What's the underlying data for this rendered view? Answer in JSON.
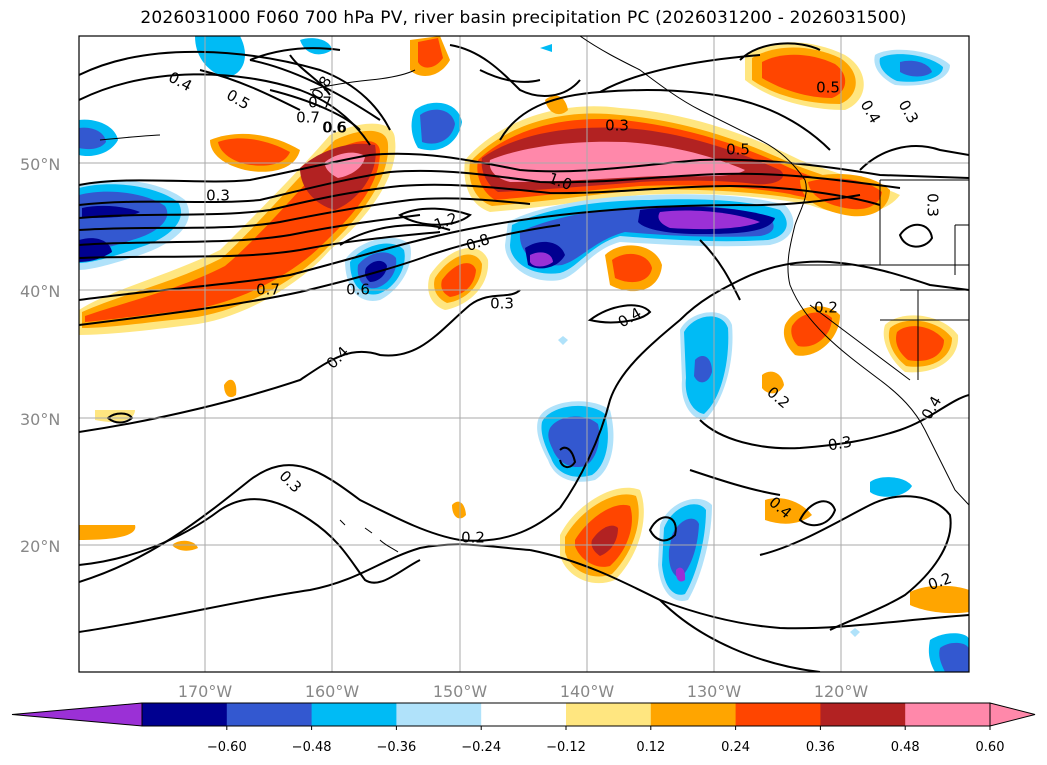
{
  "title": "2026031000 F060 700 hPa PV, river basin precipitation PC (2026031200 - 2026031500)",
  "map": {
    "lat_labels": [
      "50°N",
      "40°N",
      "30°N",
      "20°N"
    ],
    "lon_labels": [
      "170°W",
      "160°W",
      "150°W",
      "140°W",
      "130°W",
      "120°W"
    ],
    "contour_labels": [
      {
        "id": "c1",
        "text": "0.4"
      },
      {
        "id": "c2",
        "text": "0.5"
      },
      {
        "id": "c3",
        "text": "0.7"
      },
      {
        "id": "c4",
        "text": "0.6"
      },
      {
        "id": "c5",
        "text": "0.8"
      },
      {
        "id": "c6",
        "text": "0.7"
      },
      {
        "id": "c7",
        "text": "0.6"
      },
      {
        "id": "c8",
        "text": "0.3"
      },
      {
        "id": "c9",
        "text": "0.5"
      },
      {
        "id": "c10",
        "text": "0.4"
      },
      {
        "id": "c11",
        "text": "0.3"
      },
      {
        "id": "c12",
        "text": "0.3"
      },
      {
        "id": "c13",
        "text": "1.0"
      },
      {
        "id": "c14",
        "text": "1.2"
      },
      {
        "id": "c15",
        "text": "0.8"
      },
      {
        "id": "c16",
        "text": "0.7"
      },
      {
        "id": "c17",
        "text": "0.6"
      },
      {
        "id": "c18",
        "text": "0.3"
      },
      {
        "id": "c19",
        "text": "0.4"
      },
      {
        "id": "c20",
        "text": "0.4"
      },
      {
        "id": "c21",
        "text": "0.2"
      },
      {
        "id": "c22",
        "text": "0.2"
      },
      {
        "id": "c23",
        "text": "0.3"
      },
      {
        "id": "c24",
        "text": "0.3"
      },
      {
        "id": "c25",
        "text": "0.2"
      },
      {
        "id": "c26",
        "text": "0.4"
      },
      {
        "id": "c27",
        "text": "0.2"
      },
      {
        "id": "c28",
        "text": "0.4"
      },
      {
        "id": "c29",
        "text": "0.3"
      },
      {
        "id": "c30",
        "text": "0.5"
      }
    ]
  },
  "colorbar": {
    "tick_labels": [
      "−0.60",
      "−0.48",
      "−0.36",
      "−0.24",
      "−0.12",
      "0.12",
      "0.24",
      "0.36",
      "0.48",
      "0.60"
    ],
    "colors": [
      "#9b30d6",
      "#000090",
      "#3358d0",
      "#00bbf5",
      "#b0e2fa",
      "#ffffff",
      "#ffe680",
      "#ffa500",
      "#ff4500",
      "#b22222",
      "#ff88aa",
      "#ff88aa"
    ]
  },
  "palette": {
    "pink": "#ff88aa",
    "darkred": "#b22222",
    "red": "#ff4500",
    "orange": "#ffa500",
    "yellow": "#ffe680",
    "white": "#ffffff",
    "lightblue": "#b0e2fa",
    "blue": "#00bbf5",
    "medblue": "#3358d0",
    "navy": "#000090",
    "purple": "#9b30d6"
  }
}
